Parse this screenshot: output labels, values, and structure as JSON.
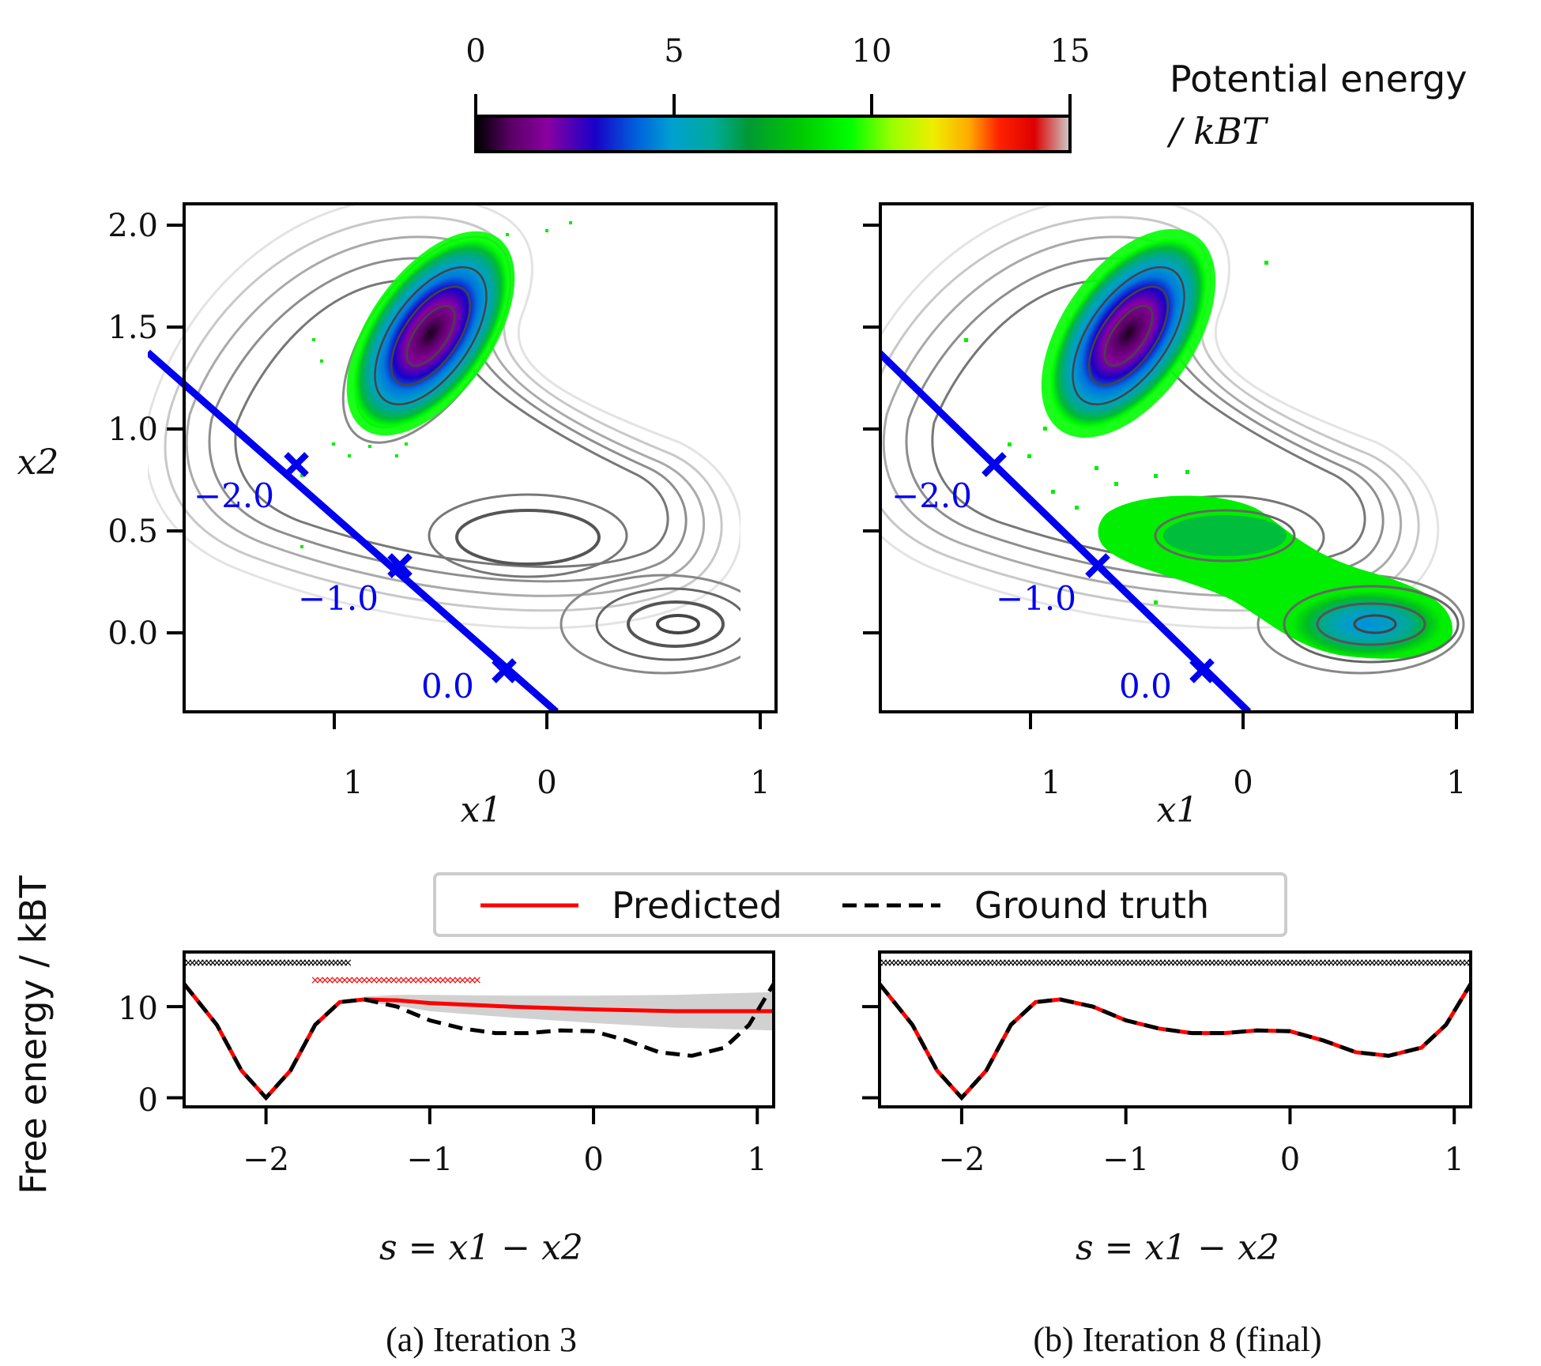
{
  "colorbar": {
    "ticks": [
      0,
      5,
      10,
      15
    ],
    "label_line1": "Potential energy",
    "label_line2": "/ kBT",
    "range": [
      0,
      15
    ],
    "colormap": "nipy_spectral"
  },
  "panels": [
    {
      "id": "a",
      "caption": "(a) Iteration 3",
      "top": {
        "xlabel": "x1",
        "ylabel": "x2",
        "xticks": [
          "1",
          "0",
          "1"
        ],
        "yticks": [
          "0.0",
          "0.5",
          "1.0",
          "1.5",
          "2.0"
        ],
        "cv_line_labels": [
          "−2.0",
          "−1.0",
          "0.0"
        ],
        "sampled_basins": [
          "top-left"
        ]
      },
      "bottom": {
        "xlabel": "s = x1 − x2",
        "xticks": [
          "−2",
          "−1",
          "0",
          "1"
        ],
        "yticks": [
          "0",
          "10"
        ]
      }
    },
    {
      "id": "b",
      "caption": "(b) Iteration 8 (final)",
      "top": {
        "xlabel": "x1",
        "xticks": [
          "1",
          "0",
          "1"
        ],
        "cv_line_labels": [
          "−2.0",
          "−1.0",
          "0.0"
        ],
        "sampled_basins": [
          "top-left",
          "middle",
          "bottom-right"
        ]
      },
      "bottom": {
        "xlabel": "s = x1 − x2",
        "xticks": [
          "−2",
          "−1",
          "0",
          "1"
        ]
      }
    }
  ],
  "bottom_ylabel": "Free energy / kBT",
  "legend": {
    "predicted": "Predicted",
    "ground_truth": "Ground truth"
  },
  "colors": {
    "cv_line": "#0000ee",
    "predicted": "#ff0000",
    "ground_truth": "#000000",
    "contour": "#555555"
  },
  "chart_data": [
    {
      "type": "heatmap",
      "title": "",
      "xlabel": "x1",
      "ylabel": "x2",
      "xlim": [
        -1.0,
        1.1
      ],
      "ylim": [
        -0.4,
        2.1
      ],
      "minima": [
        {
          "x1": -0.55,
          "x2": 1.45,
          "energy": 0
        },
        {
          "x1": -0.15,
          "x2": 0.5,
          "energy": 8
        },
        {
          "x1": 0.62,
          "x2": 0.03,
          "energy": 5
        }
      ],
      "cv_markers": [
        {
          "s": -2.0,
          "x1": -1.2,
          "x2": 0.82
        },
        {
          "s": -1.0,
          "x1": -0.7,
          "x2": 0.32
        },
        {
          "s": 0.0,
          "x1": -0.2,
          "x2": -0.18
        }
      ]
    },
    {
      "type": "line",
      "title": "Iteration 3",
      "xlabel": "s = x1 − x2",
      "ylabel": "Free energy / kBT",
      "xlim": [
        -2.5,
        1.1
      ],
      "ylim": [
        -1,
        16
      ],
      "series": [
        {
          "name": "Ground truth",
          "style": "dashed",
          "x": [
            -2.5,
            -2.3,
            -2.15,
            -2.0,
            -1.85,
            -1.7,
            -1.55,
            -1.4,
            -1.2,
            -1.0,
            -0.8,
            -0.6,
            -0.4,
            -0.2,
            0.0,
            0.2,
            0.4,
            0.6,
            0.8,
            0.95,
            1.1
          ],
          "y": [
            12.5,
            8.0,
            3.0,
            0.0,
            3.0,
            8.0,
            10.5,
            10.8,
            10.0,
            8.5,
            7.6,
            7.1,
            7.1,
            7.4,
            7.3,
            6.3,
            5.0,
            4.6,
            5.5,
            8.0,
            12.5
          ]
        },
        {
          "name": "Predicted",
          "style": "solid",
          "x": [
            -2.5,
            -2.3,
            -2.15,
            -2.0,
            -1.85,
            -1.7,
            -1.55,
            -1.4,
            -1.2,
            -1.0,
            -0.5,
            0.0,
            0.5,
            1.1
          ],
          "y": [
            12.5,
            8.0,
            3.0,
            0.0,
            3.0,
            8.0,
            10.5,
            10.8,
            10.7,
            10.4,
            10.0,
            9.7,
            9.5,
            9.5
          ]
        }
      ],
      "samples_black_s_range": [
        -2.5,
        -1.5
      ],
      "samples_red_s_range": [
        -1.7,
        -0.7
      ]
    },
    {
      "type": "line",
      "title": "Iteration 8 (final)",
      "xlabel": "s = x1 − x2",
      "xlim": [
        -2.5,
        1.1
      ],
      "ylim": [
        -1,
        16
      ],
      "series": [
        {
          "name": "Ground truth",
          "style": "dashed",
          "x": [
            -2.5,
            -2.3,
            -2.15,
            -2.0,
            -1.85,
            -1.7,
            -1.55,
            -1.4,
            -1.2,
            -1.0,
            -0.8,
            -0.6,
            -0.4,
            -0.2,
            0.0,
            0.2,
            0.4,
            0.6,
            0.8,
            0.95,
            1.1
          ],
          "y": [
            12.5,
            8.0,
            3.0,
            0.0,
            3.0,
            8.0,
            10.5,
            10.8,
            10.0,
            8.5,
            7.6,
            7.1,
            7.1,
            7.4,
            7.3,
            6.3,
            5.0,
            4.6,
            5.5,
            8.0,
            12.5
          ]
        },
        {
          "name": "Predicted",
          "style": "solid",
          "x": [
            -2.5,
            -2.3,
            -2.15,
            -2.0,
            -1.85,
            -1.7,
            -1.55,
            -1.4,
            -1.2,
            -1.0,
            -0.8,
            -0.6,
            -0.4,
            -0.2,
            0.0,
            0.2,
            0.4,
            0.6,
            0.8,
            0.95,
            1.1
          ],
          "y": [
            12.5,
            8.0,
            3.0,
            0.0,
            3.0,
            8.0,
            10.5,
            10.8,
            10.0,
            8.5,
            7.6,
            7.1,
            7.1,
            7.4,
            7.3,
            6.3,
            5.0,
            4.6,
            5.5,
            8.0,
            12.5
          ]
        }
      ],
      "samples_black_s_range": [
        -2.5,
        1.1
      ]
    }
  ]
}
